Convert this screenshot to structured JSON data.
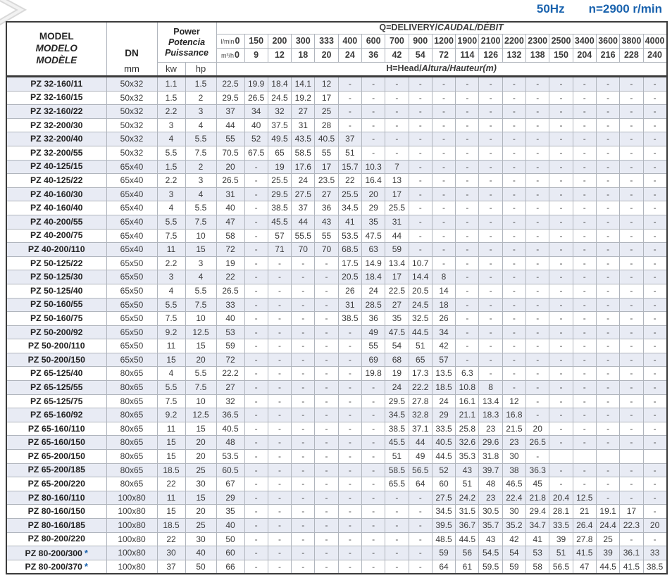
{
  "page": {
    "frequency": "50Hz",
    "speed": "n=2900 r/min",
    "accent_color": "#1a63ae",
    "stripe_color": "#e8ebf4",
    "star_symbol": "*",
    "decor_icon": "chevron-right-icon"
  },
  "table": {
    "headers": {
      "model": [
        "MODEL",
        "MODELO",
        "MODÈLE"
      ],
      "dn": "DN",
      "dn_unit": "mm",
      "power": [
        "Power",
        "Potencia",
        "Puissance"
      ],
      "power_units": [
        "kw",
        "hp"
      ],
      "delivery_main": "Q=DELIVERY/",
      "delivery_italic": "CAUDAL/DÉBIT",
      "lmin_label": "l/min",
      "m3h_label": "m³/h",
      "head_main": "H=Head/",
      "head_italic": "Altura/Hauteur(m)",
      "lmin_values": [
        "0",
        "150",
        "200",
        "300",
        "333",
        "400",
        "600",
        "700",
        "900",
        "1200",
        "1900",
        "2100",
        "2200",
        "2300",
        "2500",
        "3400",
        "3600",
        "3800",
        "4000"
      ],
      "m3h_values": [
        "0",
        "9",
        "12",
        "18",
        "20",
        "24",
        "36",
        "42",
        "54",
        "72",
        "114",
        "126",
        "132",
        "138",
        "150",
        "204",
        "216",
        "228",
        "240"
      ]
    },
    "rows": [
      {
        "model": "PZ 32-160/11",
        "star": false,
        "group_start": false,
        "dn": "50x32",
        "kw": "1.1",
        "hp": "1.5",
        "heads": [
          "22.5",
          "19.9",
          "18.4",
          "14.1",
          "12",
          "-",
          "-",
          "-",
          "-",
          "-",
          "-",
          "-",
          "-",
          "-",
          "-",
          "-",
          "-",
          "-",
          "-"
        ]
      },
      {
        "model": "PZ 32-160/15",
        "star": false,
        "group_start": false,
        "dn": "50x32",
        "kw": "1.5",
        "hp": "2",
        "heads": [
          "29.5",
          "26.5",
          "24.5",
          "19.2",
          "17",
          "-",
          "-",
          "-",
          "-",
          "-",
          "-",
          "-",
          "-",
          "-",
          "-",
          "-",
          "-",
          "-",
          "-"
        ]
      },
      {
        "model": "PZ 32-160/22",
        "star": false,
        "group_start": false,
        "dn": "50x32",
        "kw": "2.2",
        "hp": "3",
        "heads": [
          "37",
          "34",
          "32",
          "27",
          "25",
          "-",
          "-",
          "-",
          "-",
          "-",
          "-",
          "-",
          "-",
          "-",
          "-",
          "-",
          "-",
          "-",
          "-"
        ]
      },
      {
        "model": "PZ 32-200/30",
        "star": false,
        "group_start": false,
        "dn": "50x32",
        "kw": "3",
        "hp": "4",
        "heads": [
          "44",
          "40",
          "37.5",
          "31",
          "28",
          "-",
          "-",
          "-",
          "-",
          "-",
          "-",
          "-",
          "-",
          "-",
          "-",
          "-",
          "-",
          "-",
          "-"
        ]
      },
      {
        "model": "PZ 32-200/40",
        "star": false,
        "group_start": false,
        "dn": "50x32",
        "kw": "4",
        "hp": "5.5",
        "heads": [
          "55",
          "52",
          "49.5",
          "43.5",
          "40.5",
          "37",
          "-",
          "-",
          "-",
          "-",
          "-",
          "-",
          "-",
          "-",
          "-",
          "-",
          "-",
          "-",
          "-"
        ]
      },
      {
        "model": "PZ 32-200/55",
        "star": false,
        "group_start": false,
        "dn": "50x32",
        "kw": "5.5",
        "hp": "7.5",
        "heads": [
          "70.5",
          "67.5",
          "65",
          "58.5",
          "55",
          "51",
          "-",
          "-",
          "-",
          "-",
          "-",
          "-",
          "-",
          "-",
          "-",
          "-",
          "-",
          "-",
          "-"
        ]
      },
      {
        "model": "PZ 40-125/15",
        "star": false,
        "group_start": true,
        "dn": "65x40",
        "kw": "1.5",
        "hp": "2",
        "heads": [
          "20",
          "-",
          "19",
          "17.6",
          "17",
          "15.7",
          "10.3",
          "7",
          "-",
          "-",
          "-",
          "-",
          "-",
          "-",
          "-",
          "-",
          "-",
          "-",
          "-"
        ]
      },
      {
        "model": "PZ 40-125/22",
        "star": false,
        "group_start": false,
        "dn": "65x40",
        "kw": "2.2",
        "hp": "3",
        "heads": [
          "26.5",
          "-",
          "25.5",
          "24",
          "23.5",
          "22",
          "16.4",
          "13",
          "-",
          "-",
          "-",
          "-",
          "-",
          "-",
          "-",
          "-",
          "-",
          "-",
          "-"
        ]
      },
      {
        "model": "PZ 40-160/30",
        "star": false,
        "group_start": false,
        "dn": "65x40",
        "kw": "3",
        "hp": "4",
        "heads": [
          "31",
          "-",
          "29.5",
          "27.5",
          "27",
          "25.5",
          "20",
          "17",
          "-",
          "-",
          "-",
          "-",
          "-",
          "-",
          "-",
          "-",
          "-",
          "-",
          "-"
        ]
      },
      {
        "model": "PZ 40-160/40",
        "star": false,
        "group_start": false,
        "dn": "65x40",
        "kw": "4",
        "hp": "5.5",
        "heads": [
          "40",
          "-",
          "38.5",
          "37",
          "36",
          "34.5",
          "29",
          "25.5",
          "-",
          "-",
          "-",
          "-",
          "-",
          "-",
          "-",
          "-",
          "-",
          "-",
          "-"
        ]
      },
      {
        "model": "PZ 40-200/55",
        "star": false,
        "group_start": false,
        "dn": "65x40",
        "kw": "5.5",
        "hp": "7.5",
        "heads": [
          "47",
          "-",
          "45.5",
          "44",
          "43",
          "41",
          "35",
          "31",
          "-",
          "-",
          "-",
          "-",
          "-",
          "-",
          "-",
          "-",
          "-",
          "-",
          "-"
        ]
      },
      {
        "model": "PZ 40-200/75",
        "star": false,
        "group_start": false,
        "dn": "65x40",
        "kw": "7.5",
        "hp": "10",
        "heads": [
          "58",
          "-",
          "57",
          "55.5",
          "55",
          "53.5",
          "47.5",
          "44",
          "-",
          "-",
          "-",
          "-",
          "-",
          "-",
          "-",
          "-",
          "-",
          "-",
          "-"
        ]
      },
      {
        "model": "PZ 40-200/110",
        "star": false,
        "group_start": false,
        "dn": "65x40",
        "kw": "11",
        "hp": "15",
        "heads": [
          "72",
          "-",
          "71",
          "70",
          "70",
          "68.5",
          "63",
          "59",
          "-",
          "-",
          "-",
          "-",
          "-",
          "-",
          "-",
          "-",
          "-",
          "-",
          "-"
        ]
      },
      {
        "model": "PZ 50-125/22",
        "star": false,
        "group_start": true,
        "dn": "65x50",
        "kw": "2.2",
        "hp": "3",
        "heads": [
          "19",
          "-",
          "-",
          "-",
          "-",
          "17.5",
          "14.9",
          "13.4",
          "10.7",
          "-",
          "-",
          "-",
          "-",
          "-",
          "-",
          "-",
          "-",
          "-",
          "-"
        ]
      },
      {
        "model": "PZ 50-125/30",
        "star": false,
        "group_start": false,
        "dn": "65x50",
        "kw": "3",
        "hp": "4",
        "heads": [
          "22",
          "-",
          "-",
          "-",
          "-",
          "20.5",
          "18.4",
          "17",
          "14.4",
          "8",
          "-",
          "-",
          "-",
          "-",
          "-",
          "-",
          "-",
          "-",
          "-"
        ]
      },
      {
        "model": "PZ 50-125/40",
        "star": false,
        "group_start": false,
        "dn": "65x50",
        "kw": "4",
        "hp": "5.5",
        "heads": [
          "26.5",
          "-",
          "-",
          "-",
          "-",
          "26",
          "24",
          "22.5",
          "20.5",
          "14",
          "-",
          "-",
          "-",
          "-",
          "-",
          "-",
          "-",
          "-",
          "-"
        ]
      },
      {
        "model": "PZ 50-160/55",
        "star": false,
        "group_start": false,
        "dn": "65x50",
        "kw": "5.5",
        "hp": "7.5",
        "heads": [
          "33",
          "-",
          "-",
          "-",
          "-",
          "31",
          "28.5",
          "27",
          "24.5",
          "18",
          "-",
          "-",
          "-",
          "-",
          "-",
          "-",
          "-",
          "-",
          "-"
        ]
      },
      {
        "model": "PZ 50-160/75",
        "star": false,
        "group_start": false,
        "dn": "65x50",
        "kw": "7.5",
        "hp": "10",
        "heads": [
          "40",
          "-",
          "-",
          "-",
          "-",
          "38.5",
          "36",
          "35",
          "32.5",
          "26",
          "-",
          "-",
          "-",
          "-",
          "-",
          "-",
          "-",
          "-",
          "-"
        ]
      },
      {
        "model": "PZ 50-200/92",
        "star": false,
        "group_start": false,
        "dn": "65x50",
        "kw": "9.2",
        "hp": "12.5",
        "heads": [
          "53",
          "-",
          "-",
          "-",
          "-",
          "-",
          "49",
          "47.5",
          "44.5",
          "34",
          "-",
          "-",
          "-",
          "-",
          "-",
          "-",
          "-",
          "-",
          "-"
        ]
      },
      {
        "model": "PZ 50-200/110",
        "star": false,
        "group_start": false,
        "dn": "65x50",
        "kw": "11",
        "hp": "15",
        "heads": [
          "59",
          "-",
          "-",
          "-",
          "-",
          "-",
          "55",
          "54",
          "51",
          "42",
          "-",
          "-",
          "-",
          "-",
          "-",
          "-",
          "-",
          "-",
          "-"
        ]
      },
      {
        "model": "PZ 50-200/150",
        "star": false,
        "group_start": false,
        "dn": "65x50",
        "kw": "15",
        "hp": "20",
        "heads": [
          "72",
          "-",
          "-",
          "-",
          "-",
          "-",
          "69",
          "68",
          "65",
          "57",
          "-",
          "-",
          "-",
          "-",
          "-",
          "-",
          "-",
          "-",
          "-"
        ]
      },
      {
        "model": "PZ 65-125/40",
        "star": false,
        "group_start": true,
        "dn": "80x65",
        "kw": "4",
        "hp": "5.5",
        "heads": [
          "22.2",
          "-",
          "-",
          "-",
          "-",
          "-",
          "19.8",
          "19",
          "17.3",
          "13.5",
          "6.3",
          "-",
          "-",
          "-",
          "-",
          "-",
          "-",
          "-",
          "-"
        ]
      },
      {
        "model": "PZ 65-125/55",
        "star": false,
        "group_start": false,
        "dn": "80x65",
        "kw": "5.5",
        "hp": "7.5",
        "heads": [
          "27",
          "-",
          "-",
          "-",
          "-",
          "-",
          "-",
          "24",
          "22.2",
          "18.5",
          "10.8",
          "8",
          "-",
          "-",
          "-",
          "-",
          "-",
          "-",
          "-"
        ]
      },
      {
        "model": "PZ 65-125/75",
        "star": false,
        "group_start": false,
        "dn": "80x65",
        "kw": "7.5",
        "hp": "10",
        "heads": [
          "32",
          "-",
          "-",
          "-",
          "-",
          "-",
          "-",
          "29.5",
          "27.8",
          "24",
          "16.1",
          "13.4",
          "12",
          "-",
          "-",
          "-",
          "-",
          "-",
          "-"
        ]
      },
      {
        "model": "PZ 65-160/92",
        "star": false,
        "group_start": false,
        "dn": "80x65",
        "kw": "9.2",
        "hp": "12.5",
        "heads": [
          "36.5",
          "-",
          "-",
          "-",
          "-",
          "-",
          "-",
          "34.5",
          "32.8",
          "29",
          "21.1",
          "18.3",
          "16.8",
          "-",
          "-",
          "-",
          "-",
          "-",
          "-"
        ]
      },
      {
        "model": "PZ 65-160/110",
        "star": false,
        "group_start": false,
        "dn": "80x65",
        "kw": "11",
        "hp": "15",
        "heads": [
          "40.5",
          "-",
          "-",
          "-",
          "-",
          "-",
          "-",
          "38.5",
          "37.1",
          "33.5",
          "25.8",
          "23",
          "21.5",
          "20",
          "-",
          "-",
          "-",
          "-",
          "-"
        ]
      },
      {
        "model": "PZ 65-160/150",
        "star": false,
        "group_start": false,
        "dn": "80x65",
        "kw": "15",
        "hp": "20",
        "heads": [
          "48",
          "-",
          "-",
          "-",
          "-",
          "-",
          "-",
          "45.5",
          "44",
          "40.5",
          "32.6",
          "29.6",
          "23",
          "26.5",
          "-",
          "-",
          "-",
          "-",
          "-"
        ]
      },
      {
        "model": "PZ 65-200/150",
        "star": false,
        "group_start": false,
        "dn": "80x65",
        "kw": "15",
        "hp": "20",
        "heads": [
          "53.5",
          "-",
          "-",
          "-",
          "-",
          "-",
          "-",
          "51",
          "49",
          "44.5",
          "35.3",
          "31.8",
          "30",
          "-",
          "",
          "",
          "",
          "",
          ""
        ]
      },
      {
        "model": "PZ 65-200/185",
        "star": false,
        "group_start": false,
        "dn": "80x65",
        "kw": "18.5",
        "hp": "25",
        "heads": [
          "60.5",
          "-",
          "-",
          "-",
          "-",
          "-",
          "-",
          "58.5",
          "56.5",
          "52",
          "43",
          "39.7",
          "38",
          "36.3",
          "-",
          "-",
          "-",
          "-",
          "-"
        ]
      },
      {
        "model": "PZ 65-200/220",
        "star": false,
        "group_start": false,
        "dn": "80x65",
        "kw": "22",
        "hp": "30",
        "heads": [
          "67",
          "-",
          "-",
          "-",
          "-",
          "-",
          "-",
          "65.5",
          "64",
          "60",
          "51",
          "48",
          "46.5",
          "45",
          "-",
          "-",
          "-",
          "-",
          "-"
        ]
      },
      {
        "model": "PZ 80-160/110",
        "star": false,
        "group_start": true,
        "dn": "100x80",
        "kw": "11",
        "hp": "15",
        "heads": [
          "29",
          "-",
          "-",
          "-",
          "-",
          "-",
          "-",
          "-",
          "-",
          "27.5",
          "24.2",
          "23",
          "22.4",
          "21.8",
          "20.4",
          "12.5",
          "-",
          "-",
          "-"
        ]
      },
      {
        "model": "PZ 80-160/150",
        "star": false,
        "group_start": false,
        "dn": "100x80",
        "kw": "15",
        "hp": "20",
        "heads": [
          "35",
          "-",
          "-",
          "-",
          "-",
          "-",
          "-",
          "-",
          "-",
          "34.5",
          "31.5",
          "30.5",
          "30",
          "29.4",
          "28.1",
          "21",
          "19.1",
          "17",
          "-"
        ]
      },
      {
        "model": "PZ 80-160/185",
        "star": false,
        "group_start": false,
        "dn": "100x80",
        "kw": "18.5",
        "hp": "25",
        "heads": [
          "40",
          "-",
          "-",
          "-",
          "-",
          "-",
          "-",
          "-",
          "-",
          "39.5",
          "36.7",
          "35.7",
          "35.2",
          "34.7",
          "33.5",
          "26.4",
          "24.4",
          "22.3",
          "20"
        ]
      },
      {
        "model": "PZ 80-200/220",
        "star": false,
        "group_start": false,
        "dn": "100x80",
        "kw": "22",
        "hp": "30",
        "heads": [
          "50",
          "-",
          "-",
          "-",
          "-",
          "-",
          "-",
          "-",
          "-",
          "48.5",
          "44.5",
          "43",
          "42",
          "41",
          "39",
          "27.8",
          "25",
          "-",
          "-"
        ]
      },
      {
        "model": "PZ 80-200/300",
        "star": true,
        "group_start": false,
        "dn": "100x80",
        "kw": "30",
        "hp": "40",
        "heads": [
          "60",
          "-",
          "-",
          "-",
          "-",
          "-",
          "-",
          "-",
          "-",
          "59",
          "56",
          "54.5",
          "54",
          "53",
          "51",
          "41.5",
          "39",
          "36.1",
          "33"
        ]
      },
      {
        "model": "PZ 80-200/370",
        "star": true,
        "group_start": false,
        "dn": "100x80",
        "kw": "37",
        "hp": "50",
        "heads": [
          "66",
          "-",
          "-",
          "-",
          "-",
          "-",
          "-",
          "-",
          "-",
          "64",
          "61",
          "59.5",
          "59",
          "58",
          "56.5",
          "47",
          "44.5",
          "41.5",
          "38.5"
        ]
      }
    ]
  }
}
